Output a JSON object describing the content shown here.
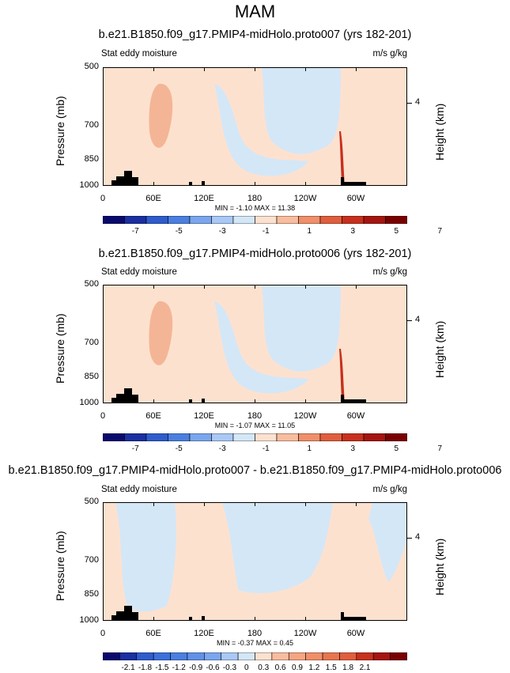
{
  "main_title": "MAM",
  "chart_data": [
    {
      "type": "heatmap",
      "title": "b.e21.B1850.f09_g17.PMIP4-midHolo.proto007 (yrs 182-201)",
      "left_string": "Stat eddy moisture",
      "right_string": "m/s g/kg",
      "ylabel": "Pressure (mb)",
      "right_label": "Height (km)",
      "right_ticks": [
        "4"
      ],
      "yticks": [
        "500",
        "700",
        "850",
        "1000"
      ],
      "xticks": [
        "0",
        "60E",
        "120E",
        "180",
        "120W",
        "60W"
      ],
      "minmax": "MIN = -1.10  MAX = 11.38",
      "colorbar_labels": [
        "-7",
        "-5",
        "-3",
        "-1",
        "1",
        "3",
        "5",
        "7"
      ],
      "colorbar_colors": [
        "#0a0a6e",
        "#1b2fa0",
        "#2f5ccc",
        "#4a7fe0",
        "#7aa6ee",
        "#a9c8f5",
        "#d4e7f7",
        "#fde1cf",
        "#f8bd9e",
        "#f08f6a",
        "#e05e3d",
        "#c7301d",
        "#a51510",
        "#7a0000"
      ]
    },
    {
      "type": "heatmap",
      "title": "b.e21.B1850.f09_g17.PMIP4-midHolo.proto006 (yrs 182-201)",
      "left_string": "Stat eddy moisture",
      "right_string": "m/s g/kg",
      "ylabel": "Pressure (mb)",
      "right_label": "Height (km)",
      "right_ticks": [
        "4"
      ],
      "yticks": [
        "500",
        "700",
        "850",
        "1000"
      ],
      "xticks": [
        "0",
        "60E",
        "120E",
        "180",
        "120W",
        "60W"
      ],
      "minmax": "MIN = -1.07  MAX = 11.05",
      "colorbar_labels": [
        "-7",
        "-5",
        "-3",
        "-1",
        "1",
        "3",
        "5",
        "7"
      ],
      "colorbar_colors": [
        "#0a0a6e",
        "#1b2fa0",
        "#2f5ccc",
        "#4a7fe0",
        "#7aa6ee",
        "#a9c8f5",
        "#d4e7f7",
        "#fde1cf",
        "#f8bd9e",
        "#f08f6a",
        "#e05e3d",
        "#c7301d",
        "#a51510",
        "#7a0000"
      ]
    },
    {
      "type": "heatmap",
      "title": "b.e21.B1850.f09_g17.PMIP4-midHolo.proto007 - b.e21.B1850.f09_g17.PMIP4-midHolo.proto006",
      "left_string": "Stat eddy moisture",
      "right_string": "m/s g/kg",
      "ylabel": "Pressure (mb)",
      "right_label": "Height (km)",
      "right_ticks": [
        "4"
      ],
      "yticks": [
        "500",
        "700",
        "850",
        "1000"
      ],
      "xticks": [
        "0",
        "60E",
        "120E",
        "180",
        "120W",
        "60W"
      ],
      "minmax": "MIN = -0.37  MAX =  0.45",
      "colorbar_labels": [
        "-2.1",
        "-1.8",
        "-1.5",
        "-1.2",
        "-0.9",
        "-0.6",
        "-0.3",
        "0",
        "0.3",
        "0.6",
        "0.9",
        "1.2",
        "1.5",
        "1.8",
        "2.1"
      ],
      "colorbar_colors": [
        "#0a0a6e",
        "#1b2fa0",
        "#2f5ccc",
        "#3d6fdb",
        "#4a7fe0",
        "#6190e8",
        "#7aa6ee",
        "#a9c8f5",
        "#d4e7f7",
        "#fde1cf",
        "#f8bd9e",
        "#f5a582",
        "#f08f6a",
        "#e8754f",
        "#e05e3d",
        "#c7301d",
        "#a51510",
        "#7a0000"
      ]
    }
  ]
}
